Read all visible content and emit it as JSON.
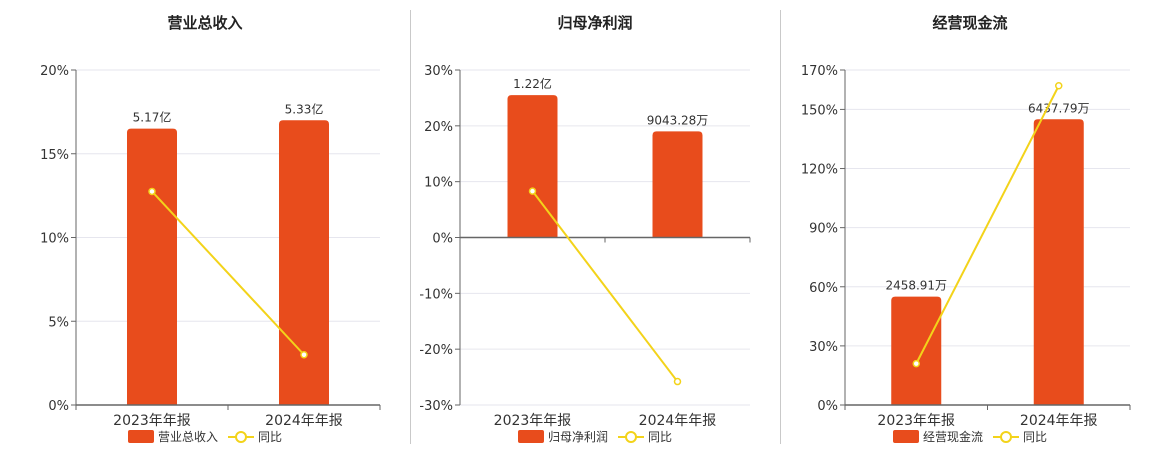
{
  "colors": {
    "bar": "#e84c1c",
    "line": "#f3d31a",
    "grid": "#e6e6ee",
    "axis": "#666666"
  },
  "chart_data": [
    {
      "type": "bar",
      "title": "营业总收入",
      "categories": [
        "2023年年报",
        "2024年年报"
      ],
      "series": [
        {
          "name": "营业总收入",
          "type": "bar",
          "values": [
            16.5,
            17.0
          ],
          "labels": [
            "5.17亿",
            "5.33亿"
          ]
        },
        {
          "name": "同比",
          "type": "line",
          "values": [
            12.75,
            3.0
          ]
        }
      ],
      "ylim": [
        0,
        20
      ],
      "yticks": [
        "0%",
        "5%",
        "10%",
        "15%",
        "20%"
      ],
      "grid": true,
      "legend": "bottom"
    },
    {
      "type": "bar",
      "title": "归母净利润",
      "categories": [
        "2023年年报",
        "2024年年报"
      ],
      "series": [
        {
          "name": "归母净利润",
          "type": "bar",
          "values": [
            25.5,
            19.0
          ],
          "labels": [
            "1.22亿",
            "9043.28万"
          ]
        },
        {
          "name": "同比",
          "type": "line",
          "values": [
            8.3,
            -25.8
          ]
        }
      ],
      "ylim": [
        -30,
        30
      ],
      "yticks": [
        "-30%",
        "-20%",
        "-10%",
        "0%",
        "10%",
        "20%",
        "30%"
      ],
      "grid": true,
      "legend": "bottom"
    },
    {
      "type": "bar",
      "title": "经营现金流",
      "categories": [
        "2023年年报",
        "2024年年报"
      ],
      "series": [
        {
          "name": "经营现金流",
          "type": "bar",
          "values": [
            55,
            145
          ],
          "labels": [
            "2458.91万",
            "6437.79万"
          ]
        },
        {
          "name": "同比",
          "type": "line",
          "values": [
            21,
            162
          ]
        }
      ],
      "ylim": [
        0,
        170
      ],
      "yticks": [
        "0%",
        "30%",
        "60%",
        "90%",
        "120%",
        "150%",
        "170%"
      ],
      "grid": true,
      "legend": "bottom"
    }
  ]
}
